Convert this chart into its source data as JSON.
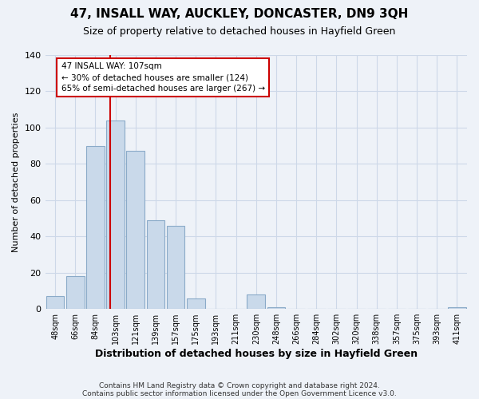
{
  "title": "47, INSALL WAY, AUCKLEY, DONCASTER, DN9 3QH",
  "subtitle": "Size of property relative to detached houses in Hayfield Green",
  "xlabel": "Distribution of detached houses by size in Hayfield Green",
  "ylabel": "Number of detached properties",
  "bar_labels": [
    "48sqm",
    "66sqm",
    "84sqm",
    "103sqm",
    "121sqm",
    "139sqm",
    "157sqm",
    "175sqm",
    "193sqm",
    "211sqm",
    "230sqm",
    "248sqm",
    "266sqm",
    "284sqm",
    "302sqm",
    "320sqm",
    "338sqm",
    "357sqm",
    "375sqm",
    "393sqm",
    "411sqm"
  ],
  "bar_values": [
    7,
    18,
    90,
    104,
    87,
    49,
    46,
    6,
    0,
    0,
    8,
    1,
    0,
    0,
    0,
    0,
    0,
    0,
    0,
    0,
    1
  ],
  "bar_color": "#c9d9ea",
  "bar_edge_color": "#8aaac8",
  "red_line_color": "#cc0000",
  "annotation_title": "47 INSALL WAY: 107sqm",
  "annotation_line1": "← 30% of detached houses are smaller (124)",
  "annotation_line2": "65% of semi-detached houses are larger (267) →",
  "annotation_box_color": "#ffffff",
  "annotation_box_edge": "#cc0000",
  "ylim": [
    0,
    140
  ],
  "yticks": [
    0,
    20,
    40,
    60,
    80,
    100,
    120,
    140
  ],
  "grid_color": "#cdd8e8",
  "bg_color": "#eef2f8",
  "footnote1": "Contains HM Land Registry data © Crown copyright and database right 2024.",
  "footnote2": "Contains public sector information licensed under the Open Government Licence v3.0."
}
